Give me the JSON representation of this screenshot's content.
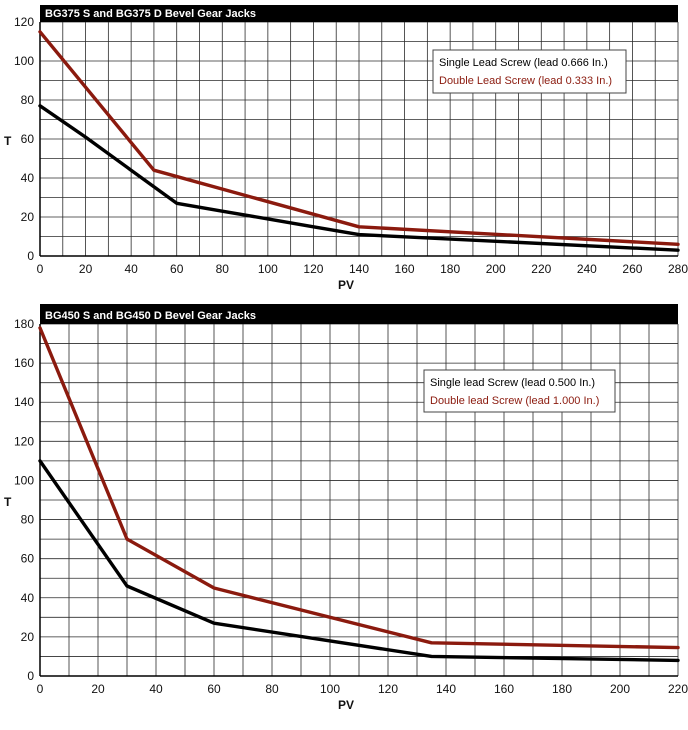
{
  "chart_data": [
    {
      "type": "line",
      "title": "BG375 S and BG375 D Bevel Gear Jacks",
      "xlabel": "PV",
      "ylabel": "T",
      "xlim": [
        0,
        280
      ],
      "ylim": [
        0,
        120
      ],
      "x_ticks": [
        0,
        20,
        40,
        60,
        80,
        100,
        120,
        140,
        160,
        180,
        200,
        220,
        240,
        260,
        280
      ],
      "y_ticks": [
        0,
        20,
        40,
        60,
        80,
        100,
        120
      ],
      "x_tick_labels": [
        "0",
        "20",
        "40",
        "60",
        "80",
        "100",
        "120",
        "140",
        "160",
        "180",
        "200",
        "220",
        "240",
        "260",
        "280"
      ],
      "y_tick_labels": [
        "0",
        "20",
        "40",
        "60",
        "80",
        "100",
        "120"
      ],
      "grid": true,
      "legend_position": "top-right",
      "series": [
        {
          "name": "Single Lead Screw (lead 0.666 In.)",
          "color": "#000000",
          "x": [
            0,
            20,
            40,
            60,
            80,
            100,
            120,
            140,
            280
          ],
          "y": [
            77,
            61,
            44,
            27,
            23,
            19,
            15,
            11,
            3
          ]
        },
        {
          "name": "Double Lead Screw (lead 0.333 In.)",
          "color": "#8b1a0e",
          "x": [
            0,
            50,
            140,
            280
          ],
          "y": [
            115,
            44,
            15,
            6
          ]
        }
      ]
    },
    {
      "type": "line",
      "title": "BG450 S and BG450 D Bevel Gear Jacks",
      "xlabel": "PV",
      "ylabel": "T",
      "xlim": [
        0,
        220
      ],
      "ylim": [
        0,
        180
      ],
      "x_ticks": [
        0,
        20,
        40,
        60,
        80,
        100,
        120,
        140,
        160,
        180,
        200,
        220
      ],
      "y_ticks": [
        0,
        20,
        40,
        60,
        80,
        100,
        120,
        140,
        160,
        180
      ],
      "x_tick_labels": [
        "0",
        "20",
        "40",
        "60",
        "80",
        "100",
        "120",
        "140",
        "160",
        "180",
        "200",
        "220"
      ],
      "y_tick_labels": [
        "0",
        "20",
        "40",
        "60",
        "80",
        "100",
        "120",
        "140",
        "160",
        "180"
      ],
      "grid": true,
      "legend_position": "top-right",
      "series": [
        {
          "name": "Single lead Screw (lead 0.500 In.)",
          "color": "#000000",
          "x": [
            0,
            30,
            60,
            135,
            220
          ],
          "y": [
            110,
            46,
            27,
            10,
            8
          ]
        },
        {
          "name": "Double lead Screw (lead 1.000 In.)",
          "color": "#8b1a0e",
          "x": [
            0,
            30,
            60,
            135,
            220
          ],
          "y": [
            178,
            70,
            45,
            17,
            14.5
          ]
        }
      ]
    }
  ]
}
